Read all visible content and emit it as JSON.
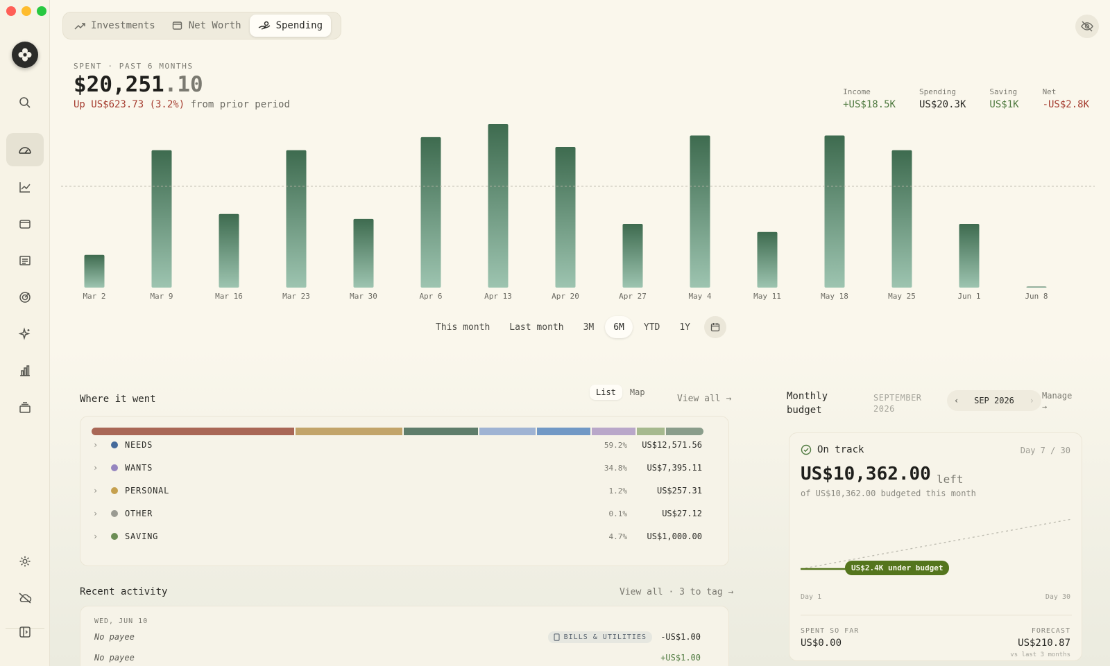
{
  "window": {
    "traffic_lights": [
      "close",
      "minimize",
      "zoom"
    ]
  },
  "sidebar": {
    "items": [
      {
        "name": "search",
        "icon": "search-icon"
      },
      {
        "name": "dashboard",
        "icon": "gauge-icon",
        "active": true
      },
      {
        "name": "investments",
        "icon": "trend-chart-icon"
      },
      {
        "name": "accounts",
        "icon": "wallet-icon"
      },
      {
        "name": "transactions",
        "icon": "list-icon"
      },
      {
        "name": "goals",
        "icon": "target-icon"
      },
      {
        "name": "insights",
        "icon": "sparkle-icon"
      },
      {
        "name": "reports",
        "icon": "bar-chart-icon"
      },
      {
        "name": "archive",
        "icon": "stack-icon"
      }
    ],
    "bottom": [
      {
        "name": "settings",
        "icon": "gear-icon"
      },
      {
        "name": "offline",
        "icon": "cloud-off-icon"
      },
      {
        "name": "collapse",
        "icon": "sidebar-toggle-icon"
      }
    ]
  },
  "tabs": [
    {
      "label": "Investments",
      "icon": "trend-up-icon",
      "active": false
    },
    {
      "label": "Net Worth",
      "icon": "wallet-icon",
      "active": false
    },
    {
      "label": "Spending",
      "icon": "hand-coins-icon",
      "active": true
    }
  ],
  "header": {
    "kicker": "SPENT · PAST 6 MONTHS",
    "amount_main": "$20,251",
    "amount_cents": ".10",
    "change_up": "Up US$623.73 (3.2%)",
    "change_rest": " from prior period"
  },
  "stats": [
    {
      "label": "Income",
      "value": "+US$18.5K",
      "color": "#4f7a40"
    },
    {
      "label": "Spending",
      "value": "US$20.3K",
      "color": "#2a2a26"
    },
    {
      "label": "Saving",
      "value": "US$1K",
      "color": "#4f7a40"
    },
    {
      "label": "Net",
      "value": "-US$2.8K",
      "color": "#a53c2f"
    }
  ],
  "chart_data": {
    "type": "bar",
    "categories": [
      "Mar 2",
      "Mar 9",
      "Mar 16",
      "Mar 23",
      "Mar 30",
      "Apr 6",
      "Apr 13",
      "Apr 20",
      "Apr 27",
      "May 4",
      "May 11",
      "May 18",
      "May 25",
      "Jun 1",
      "Jun 8"
    ],
    "values": [
      0.2,
      0.84,
      0.45,
      0.84,
      0.42,
      0.92,
      1.0,
      0.86,
      0.39,
      0.93,
      0.34,
      0.93,
      0.84,
      0.39,
      0.005
    ],
    "average_line": 0.62,
    "yaxis": "hidden",
    "grid": false,
    "colors": {
      "bar_top": "#3e6b4f",
      "bar_bottom": "#9dc4b0",
      "avg_line": "#b8b5a6"
    }
  },
  "ranges": {
    "items": [
      "This month",
      "Last month",
      "3M",
      "6M",
      "YTD",
      "1Y"
    ],
    "active": "6M"
  },
  "where": {
    "title": "Where it went",
    "toggle": [
      "List",
      "Map"
    ],
    "toggle_active": "List",
    "view_all": "View all →",
    "bar_segments": [
      {
        "pct": 33.4,
        "color": "#a96756"
      },
      {
        "pct": 17.6,
        "color": "#c2a46a"
      },
      {
        "pct": 12.2,
        "color": "#5f7d6b"
      },
      {
        "pct": 9.2,
        "color": "#9fb3d3"
      },
      {
        "pct": 8.9,
        "color": "#7198c5"
      },
      {
        "pct": 7.1,
        "color": "#b9a7c9"
      },
      {
        "pct": 4.6,
        "color": "#a6b98e"
      },
      {
        "pct": 6.2,
        "color": "#8a9d8b"
      }
    ],
    "categories": [
      {
        "name": "NEEDS",
        "pct": "59.2%",
        "amount": "US$12,571.56",
        "color": "#456a9b"
      },
      {
        "name": "WANTS",
        "pct": "34.8%",
        "amount": "US$7,395.11",
        "color": "#9585bf"
      },
      {
        "name": "PERSONAL",
        "pct": "1.2%",
        "amount": "US$257.31",
        "color": "#c5a04e"
      },
      {
        "name": "OTHER",
        "pct": "0.1%",
        "amount": "US$27.12",
        "color": "#9a9a92"
      },
      {
        "name": "SAVING",
        "pct": "4.7%",
        "amount": "US$1,000.00",
        "color": "#6c8d55"
      }
    ]
  },
  "activity": {
    "title": "Recent activity",
    "view_all": "View all · 3 to tag →",
    "date": "WED, JUN 10",
    "rows": [
      {
        "payee": "No payee",
        "tag": "BILLS & UTILITIES",
        "amount": "-US$1.00",
        "color": "#2a2a26"
      },
      {
        "payee": "No payee",
        "tag": "",
        "amount": "+US$1.00",
        "color": "#4f7a40"
      }
    ]
  },
  "budget": {
    "title_line1": "Monthly",
    "title_line2": "budget",
    "month_line1": "SEPTEMBER",
    "month_line2": "2026",
    "nav_label": "SEP 2026",
    "manage_line1": "Manage",
    "manage_line2": "→",
    "status": "On track",
    "day": "Day 7 / 30",
    "left_amount": "US$10,362.00",
    "left_word": "left",
    "of_line": "of US$10,362.00 budgeted this month",
    "under_badge": "US$2.4K under budget",
    "day_start": "Day 1",
    "day_end": "Day 30",
    "spent_label": "SPENT SO FAR",
    "spent_value": "US$0.00",
    "forecast_label": "FORECAST",
    "forecast_value": "US$210.87",
    "vs_label": "vs last 3 months"
  }
}
